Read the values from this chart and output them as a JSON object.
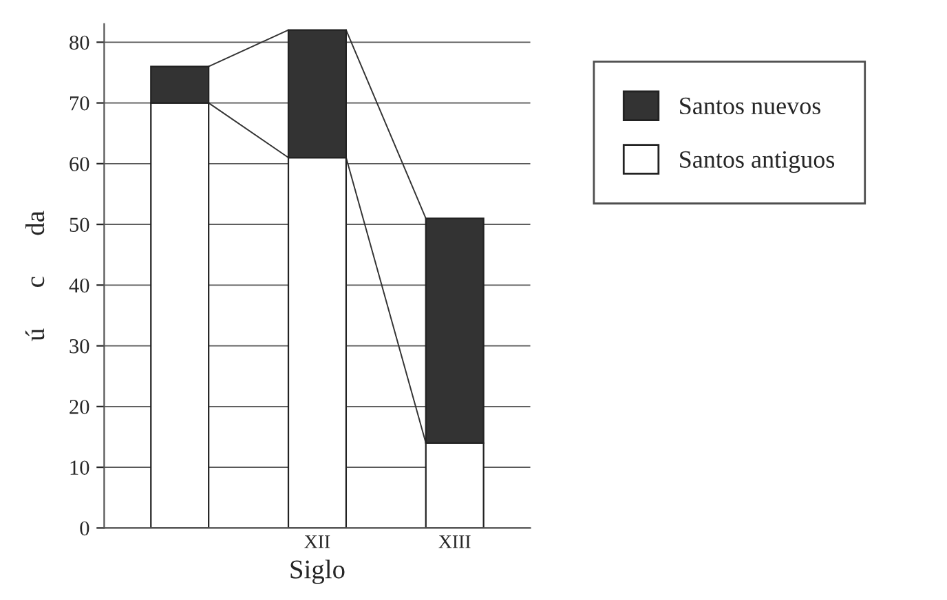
{
  "chart_data": {
    "type": "bar",
    "stacked": true,
    "xlabel": "Siglo",
    "ylabel": "ú      c      da",
    "categories": [
      null,
      "XII",
      "XIII"
    ],
    "series": [
      {
        "name": "Santos antiguos",
        "color": "#ffffff",
        "values": [
          70,
          61,
          14
        ]
      },
      {
        "name": "Santos nuevos",
        "color": "#333333",
        "values": [
          6,
          21,
          37
        ]
      }
    ],
    "ylim": [
      0,
      83
    ],
    "yticks": [
      0,
      10,
      20,
      30,
      40,
      50,
      60,
      70,
      80
    ],
    "grid": "y",
    "legend": "right"
  }
}
